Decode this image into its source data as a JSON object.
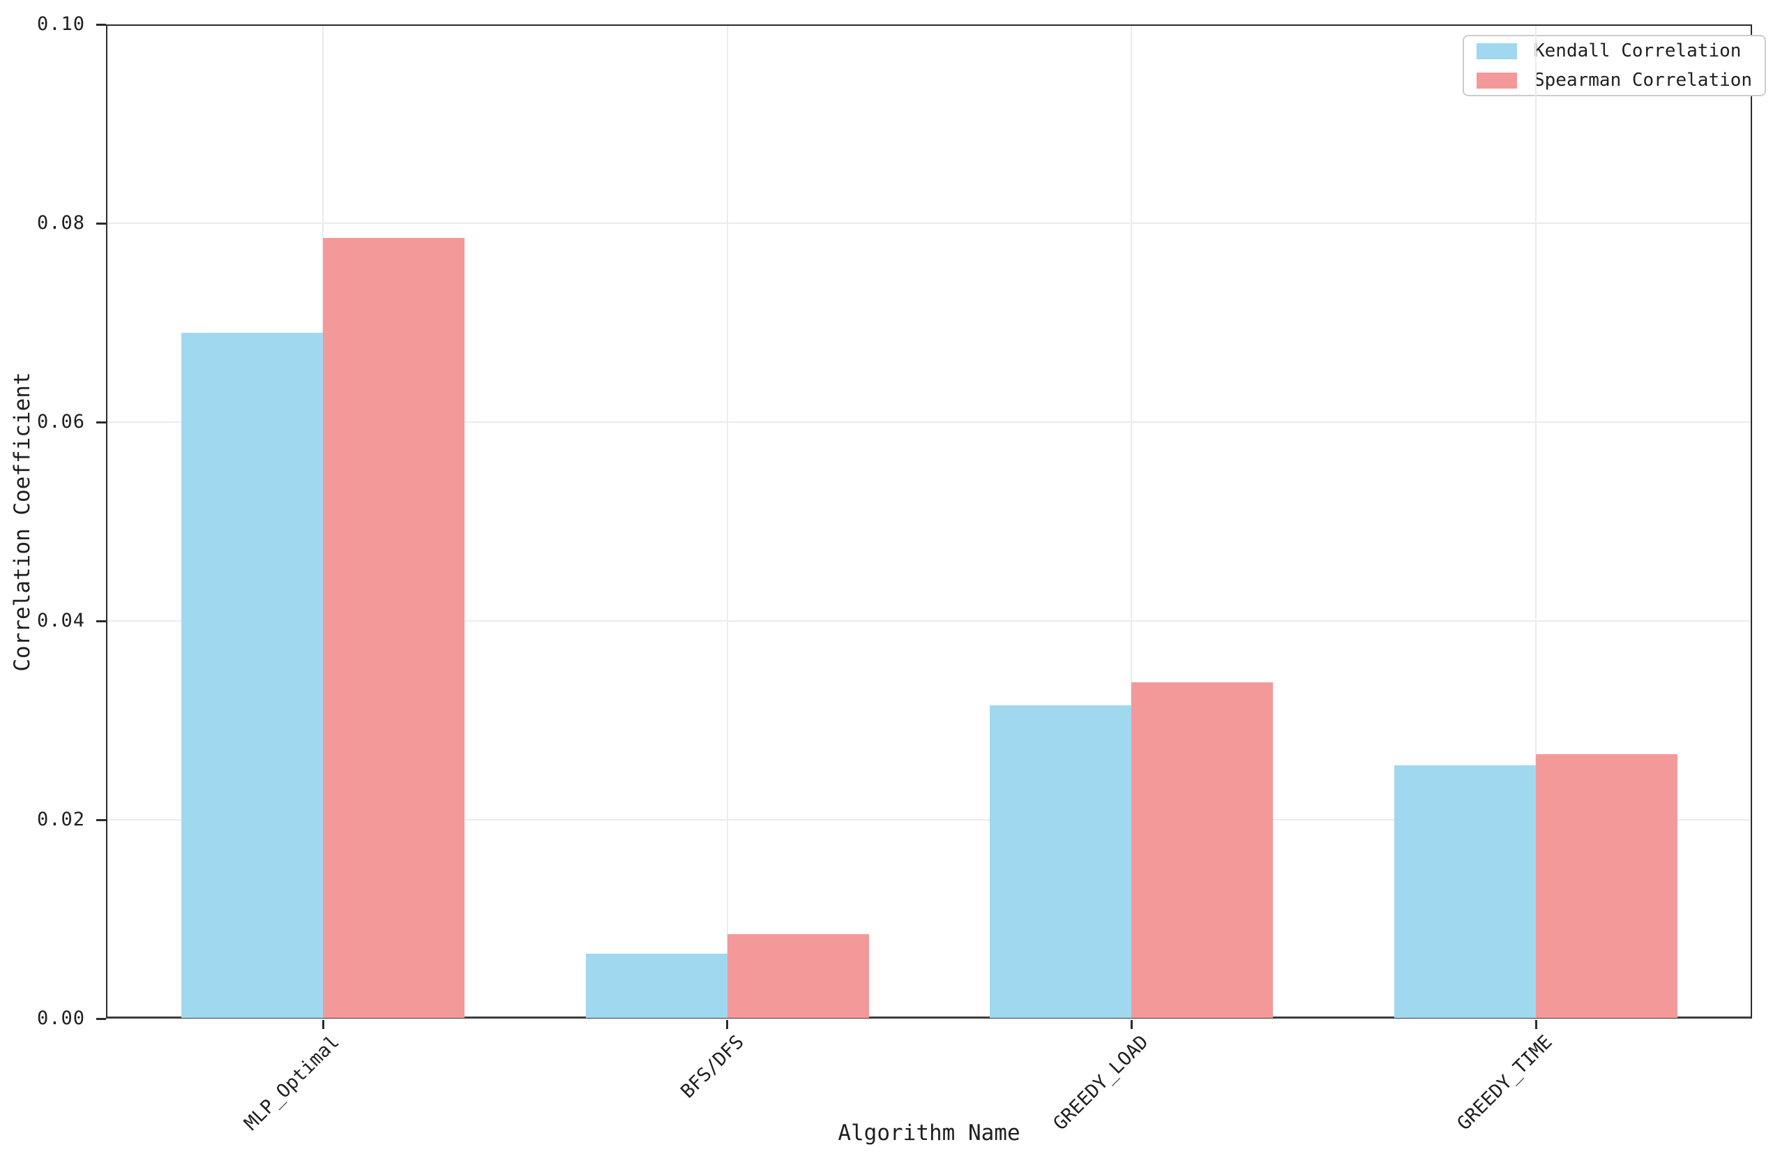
{
  "chart_data": {
    "type": "bar",
    "categories": [
      "MLP_Optimal",
      "BFS/DFS",
      "GREEDY_LOAD",
      "GREEDY_TIME"
    ],
    "series": [
      {
        "name": "Kendall Correlation",
        "color": "#9FD8EF",
        "values": [
          0.069,
          0.0065,
          0.0315,
          0.0255
        ]
      },
      {
        "name": "Spearman Correlation",
        "color": "#F39999",
        "values": [
          0.0785,
          0.0085,
          0.0338,
          0.0266
        ]
      }
    ],
    "xlabel": "Algorithm Name",
    "ylabel": "Correlation Coefficient",
    "ylim": [
      0,
      0.1
    ],
    "yticks": [
      "0.00",
      "0.02",
      "0.04",
      "0.06",
      "0.08",
      "0.10"
    ],
    "grid": true,
    "legend_position": "upper right",
    "bar_width_fraction": 0.35
  }
}
